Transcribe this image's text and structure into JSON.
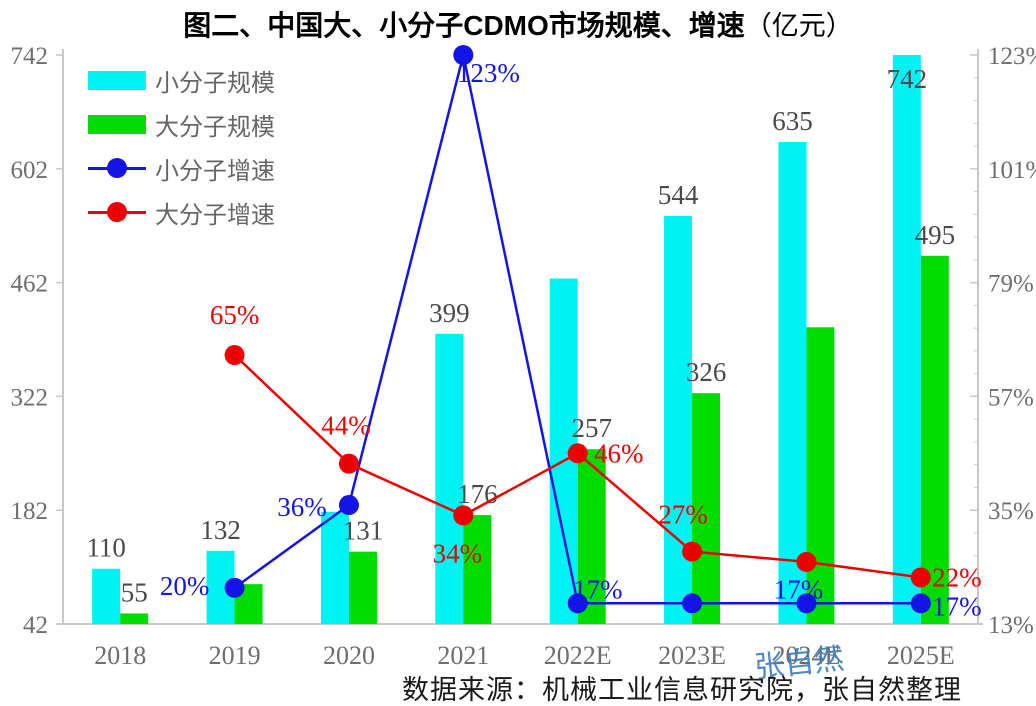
{
  "title": {
    "main": "图二、中国大、小分子CDMO市场规模、增速",
    "unit": "（亿元）"
  },
  "legend": {
    "items": [
      {
        "label": "小分子规模",
        "type": "bar",
        "color": "#00F2F2"
      },
      {
        "label": "大分子规模",
        "type": "bar",
        "color": "#00DC00"
      },
      {
        "label": "小分子增速",
        "type": "line",
        "color": "#1414E6"
      },
      {
        "label": "大分子增速",
        "type": "line",
        "color": "#EC0000"
      }
    ]
  },
  "watermark": "张自然",
  "source_note": "数据来源：机械工业信息研究院，张自然整理",
  "chart_data": {
    "type": "bar+line combo",
    "title": "图二、中国大、小分子CDMO市场规模、增速（亿元）",
    "categories": [
      "2018",
      "2019",
      "2020",
      "2021",
      "2022E",
      "2023E",
      "2024E",
      "2025E"
    ],
    "bar_series": [
      {
        "name": "小分子规模",
        "color": "#00F2F2",
        "values": [
          110,
          132,
          180,
          399,
          467,
          544,
          635,
          742
        ],
        "point_labels": [
          "110",
          "132",
          "",
          "399",
          "",
          "544",
          "635",
          "742"
        ]
      },
      {
        "name": "大分子规模",
        "color": "#00DC00",
        "values": [
          55,
          91,
          131,
          176,
          257,
          326,
          407,
          495
        ],
        "point_labels": [
          "55",
          "",
          "131",
          "176",
          "257",
          "326",
          "",
          "495"
        ]
      }
    ],
    "line_series": [
      {
        "name": "小分子增速",
        "color": "#1414E6",
        "values_percent": [
          null,
          20,
          36,
          123,
          17,
          17,
          17,
          17
        ],
        "point_labels": [
          "",
          "20%",
          "36%",
          "123%",
          "17%",
          "",
          "17%",
          "17%"
        ]
      },
      {
        "name": "大分子增速",
        "color": "#EC0000",
        "values_percent": [
          null,
          65,
          44,
          34,
          46,
          27,
          25,
          22
        ],
        "point_labels": [
          "",
          "65%",
          "44%",
          "34%",
          "46%",
          "27%",
          "",
          "22%"
        ]
      }
    ],
    "left_axis": {
      "tick_values": [
        42,
        182,
        322,
        462,
        602,
        742
      ],
      "range": [
        42,
        742
      ]
    },
    "right_axis": {
      "tick_labels": [
        "13%",
        "35%",
        "57%",
        "79%",
        "101%",
        "123%"
      ],
      "tick_values_percent": [
        13,
        35,
        57,
        79,
        101,
        123
      ],
      "range_percent": [
        13,
        123
      ]
    },
    "grid": false,
    "legend_position": "top-left"
  }
}
